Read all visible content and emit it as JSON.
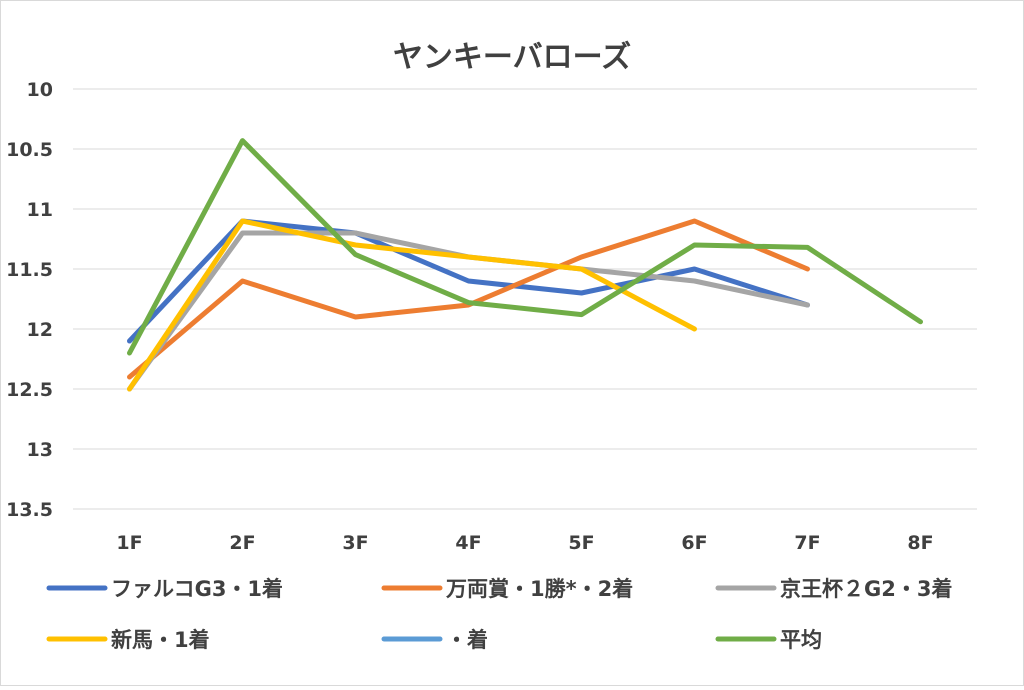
{
  "chart_data": {
    "type": "line",
    "title": "ヤンキーバローズ",
    "xlabel": "",
    "ylabel": "",
    "categories": [
      "1F",
      "2F",
      "3F",
      "4F",
      "5F",
      "6F",
      "7F",
      "8F"
    ],
    "y_ticks": [
      "10",
      "10.5",
      "11",
      "11.5",
      "12",
      "12.5",
      "13",
      "13.5"
    ],
    "ylim": [
      10,
      13.5
    ],
    "y_reversed": true,
    "grid": true,
    "legend_position": "bottom",
    "series": [
      {
        "name": "ファルコG3・1着",
        "color": "#4472c4",
        "values": [
          12.1,
          11.1,
          11.2,
          11.6,
          11.7,
          11.5,
          11.8,
          null
        ]
      },
      {
        "name": "万両賞・1勝*・2着",
        "color": "#ed7d31",
        "values": [
          12.4,
          11.6,
          11.9,
          11.8,
          11.4,
          11.1,
          11.5,
          null
        ]
      },
      {
        "name": "京王杯２G2・3着",
        "color": "#a5a5a5",
        "values": [
          12.5,
          11.2,
          11.2,
          11.4,
          11.5,
          11.6,
          11.8,
          null
        ]
      },
      {
        "name": "新馬・1着",
        "color": "#ffc000",
        "values": [
          12.5,
          11.1,
          11.3,
          11.4,
          11.5,
          12.0,
          null,
          null
        ]
      },
      {
        "name": "・着",
        "color": "#5b9bd5",
        "values": [
          null,
          null,
          null,
          null,
          null,
          null,
          null,
          null
        ]
      },
      {
        "name": "平均",
        "color": "#70ad47",
        "values": [
          12.2,
          10.43,
          11.38,
          11.78,
          11.88,
          11.3,
          11.32,
          11.94
        ]
      }
    ]
  }
}
